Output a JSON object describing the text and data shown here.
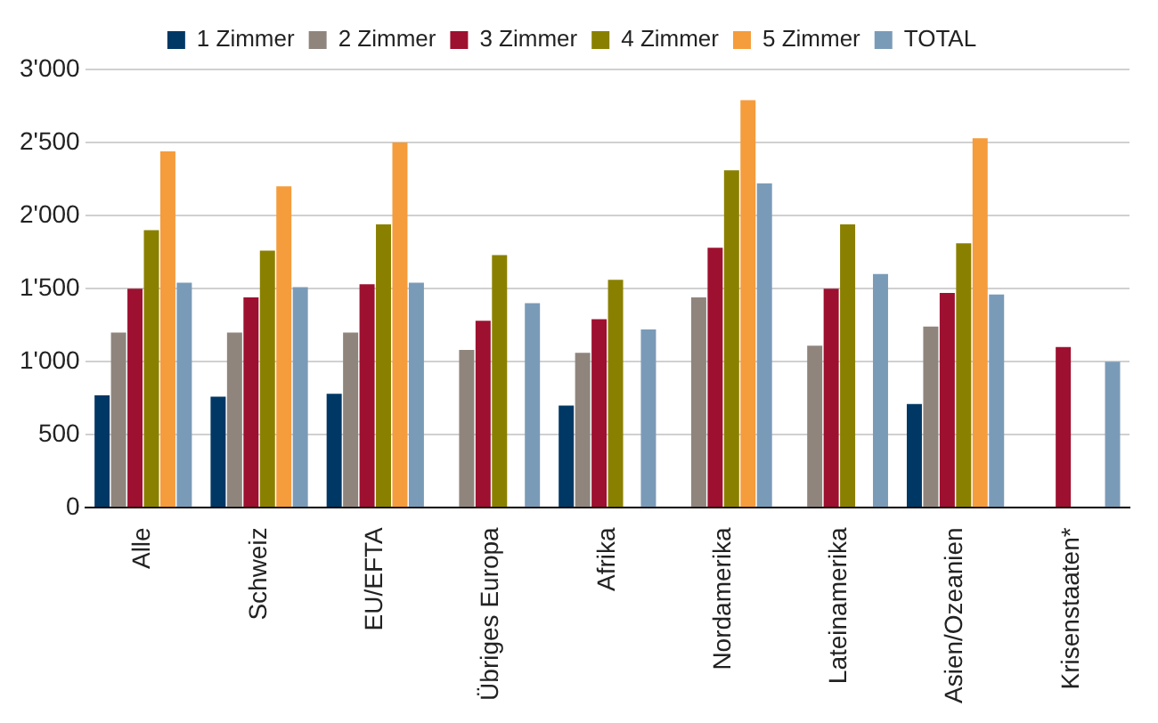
{
  "chart_data": {
    "type": "bar",
    "categories": [
      "Alle",
      "Schweiz",
      "EU/EFTA",
      "Übriges Europa",
      "Afrika",
      "Nordamerika",
      "Lateinamerika",
      "Asien/Ozeanien",
      "Krisenstaaten*"
    ],
    "series": [
      {
        "name": "1 Zimmer",
        "color": "#003865",
        "values": [
          770,
          760,
          780,
          null,
          700,
          null,
          null,
          710,
          null
        ]
      },
      {
        "name": "2 Zimmer",
        "color": "#8f857d",
        "values": [
          1200,
          1200,
          1200,
          1080,
          1060,
          1440,
          1110,
          1240,
          null
        ]
      },
      {
        "name": "3 Zimmer",
        "color": "#9e1030",
        "values": [
          1500,
          1440,
          1530,
          1280,
          1290,
          1780,
          1500,
          1470,
          1100
        ]
      },
      {
        "name": "4 Zimmer",
        "color": "#8a8000",
        "values": [
          1900,
          1760,
          1940,
          1730,
          1560,
          2310,
          1940,
          1810,
          null
        ]
      },
      {
        "name": "5 Zimmer",
        "color": "#f59c3c",
        "values": [
          2440,
          2200,
          2500,
          null,
          null,
          2790,
          null,
          2530,
          null
        ]
      },
      {
        "name": "TOTAL",
        "color": "#7a9bb8",
        "values": [
          1540,
          1510,
          1540,
          1400,
          1220,
          2220,
          1600,
          1460,
          1000
        ]
      }
    ],
    "ylim": [
      0,
      3000
    ],
    "yticks": [
      0,
      500,
      {
        "value": 1000,
        "label": "1'000"
      },
      {
        "value": 1500,
        "label": "1'500"
      },
      {
        "value": 2000,
        "label": "2'000"
      },
      {
        "value": 2500,
        "label": "2'500"
      },
      {
        "value": 3000,
        "label": "3'000"
      }
    ],
    "grid": "y",
    "legend": "top"
  }
}
